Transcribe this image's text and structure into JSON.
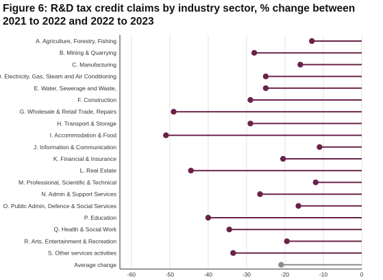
{
  "chart_data": {
    "type": "lollipop",
    "title": "Figure 6: R&D tax credit claims by industry sector, % change between 2021 to 2022 and 2022 to 2023",
    "xlabel": "",
    "ylabel": "",
    "xlim": [
      -63,
      0
    ],
    "x_ticks": [
      "-60",
      "-50",
      "-40",
      "-30",
      "-20",
      "-10",
      "0"
    ],
    "x_tick_values": [
      -60,
      -50,
      -40,
      -30,
      -20,
      -10,
      0
    ],
    "grid": "vertical",
    "legend": "none",
    "categories": [
      "A. Agriculture, Forestry, Fishing",
      "B. Mining & Quarrying",
      "C. Manufacturing",
      "D. Electricity, Gas, Steam and Air Conditioning",
      "E. Water, Sewerage and Waste,",
      "F. Construction",
      "G. Wholesale & Retail Trade, Repairs",
      "H. Transport & Storage",
      "I. Accommodation & Food",
      "J. Information & Communication",
      "K. Financial & Insurance",
      "L. Real Estate",
      "M. Professional, Scientific & Technical",
      "N. Admin & Support Services",
      "O. Public Admin, Defence & Social Services",
      "P. Education",
      "Q. Health & Social Work",
      "R. Arts, Entertainment & Recreation",
      "S. Other services activities",
      "Average change"
    ],
    "values": [
      -13,
      -28,
      -16,
      -25,
      -25,
      -29,
      -49,
      -29,
      -51,
      -11,
      -20.5,
      -44.5,
      -12,
      -26.5,
      -16.5,
      -40,
      -34.5,
      -19.5,
      -33.5,
      -21
    ],
    "colors": {
      "sector": "#6b2149",
      "average": "#8c8c8c",
      "grid": "#e2e2e2",
      "axis": "#333333"
    }
  }
}
